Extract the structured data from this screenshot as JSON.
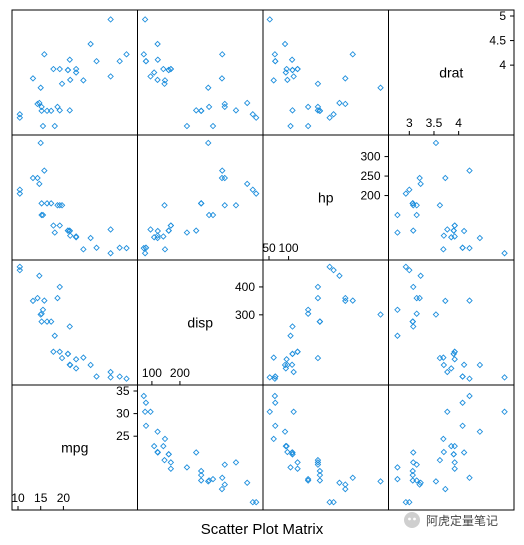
{
  "chart_data": {
    "type": "scatter",
    "title": "Scatter Plot Matrix",
    "grid": false,
    "point_color": "#1f8fdd",
    "variables": [
      {
        "name": "mpg",
        "range": [
          10,
          35
        ],
        "ticks_lo": [
          10,
          15,
          20
        ],
        "ticks_hi": [
          25,
          30,
          35
        ]
      },
      {
        "name": "disp",
        "range": [
          70,
          475
        ],
        "ticks_lo": [
          100,
          200
        ],
        "ticks_hi": [
          300,
          400
        ]
      },
      {
        "name": "hp",
        "range": [
          50,
          340
        ],
        "ticks_lo": [
          50,
          100
        ],
        "ticks_hi": [
          200,
          250,
          300
        ]
      },
      {
        "name": "drat",
        "range": [
          2.7,
          5.0
        ],
        "ticks_lo": [
          3.0,
          3.5,
          4.0
        ],
        "ticks_hi": [
          4.0,
          4.5,
          5.0
        ]
      }
    ],
    "points": [
      {
        "mpg": 21.0,
        "disp": 160,
        "hp": 110,
        "drat": 3.9
      },
      {
        "mpg": 21.0,
        "disp": 160,
        "hp": 110,
        "drat": 3.9
      },
      {
        "mpg": 22.8,
        "disp": 108,
        "hp": 93,
        "drat": 3.85
      },
      {
        "mpg": 21.4,
        "disp": 258,
        "hp": 110,
        "drat": 3.08
      },
      {
        "mpg": 18.7,
        "disp": 360,
        "hp": 175,
        "drat": 3.15
      },
      {
        "mpg": 18.1,
        "disp": 225,
        "hp": 105,
        "drat": 2.76
      },
      {
        "mpg": 14.3,
        "disp": 360,
        "hp": 245,
        "drat": 3.21
      },
      {
        "mpg": 24.4,
        "disp": 146.7,
        "hp": 62,
        "drat": 3.69
      },
      {
        "mpg": 22.8,
        "disp": 140.8,
        "hp": 95,
        "drat": 3.92
      },
      {
        "mpg": 19.2,
        "disp": 167.6,
        "hp": 123,
        "drat": 3.92
      },
      {
        "mpg": 17.8,
        "disp": 167.6,
        "hp": 123,
        "drat": 3.92
      },
      {
        "mpg": 16.4,
        "disp": 275.8,
        "hp": 180,
        "drat": 3.07
      },
      {
        "mpg": 17.3,
        "disp": 275.8,
        "hp": 180,
        "drat": 3.07
      },
      {
        "mpg": 15.2,
        "disp": 275.8,
        "hp": 180,
        "drat": 3.07
      },
      {
        "mpg": 10.4,
        "disp": 472,
        "hp": 205,
        "drat": 2.93
      },
      {
        "mpg": 10.4,
        "disp": 460,
        "hp": 215,
        "drat": 3.0
      },
      {
        "mpg": 14.7,
        "disp": 440,
        "hp": 230,
        "drat": 3.23
      },
      {
        "mpg": 32.4,
        "disp": 78.7,
        "hp": 66,
        "drat": 4.08
      },
      {
        "mpg": 30.4,
        "disp": 75.7,
        "hp": 52,
        "drat": 4.93
      },
      {
        "mpg": 33.9,
        "disp": 71.1,
        "hp": 65,
        "drat": 4.22
      },
      {
        "mpg": 21.5,
        "disp": 120.1,
        "hp": 97,
        "drat": 3.7
      },
      {
        "mpg": 15.5,
        "disp": 318,
        "hp": 150,
        "drat": 2.76
      },
      {
        "mpg": 15.2,
        "disp": 304,
        "hp": 150,
        "drat": 3.15
      },
      {
        "mpg": 13.3,
        "disp": 350,
        "hp": 245,
        "drat": 3.73
      },
      {
        "mpg": 19.2,
        "disp": 400,
        "hp": 175,
        "drat": 3.08
      },
      {
        "mpg": 27.3,
        "disp": 79,
        "hp": 66,
        "drat": 4.08
      },
      {
        "mpg": 26.0,
        "disp": 120.3,
        "hp": 91,
        "drat": 4.43
      },
      {
        "mpg": 30.4,
        "disp": 95.1,
        "hp": 113,
        "drat": 3.77
      },
      {
        "mpg": 15.8,
        "disp": 351,
        "hp": 264,
        "drat": 4.22
      },
      {
        "mpg": 19.7,
        "disp": 145,
        "hp": 175,
        "drat": 3.62
      },
      {
        "mpg": 15.0,
        "disp": 301,
        "hp": 335,
        "drat": 3.54
      },
      {
        "mpg": 21.4,
        "disp": 121,
        "hp": 109,
        "drat": 4.11
      }
    ]
  },
  "watermark": {
    "text": "阿虎定量笔记",
    "icon": "wechat-icon"
  }
}
